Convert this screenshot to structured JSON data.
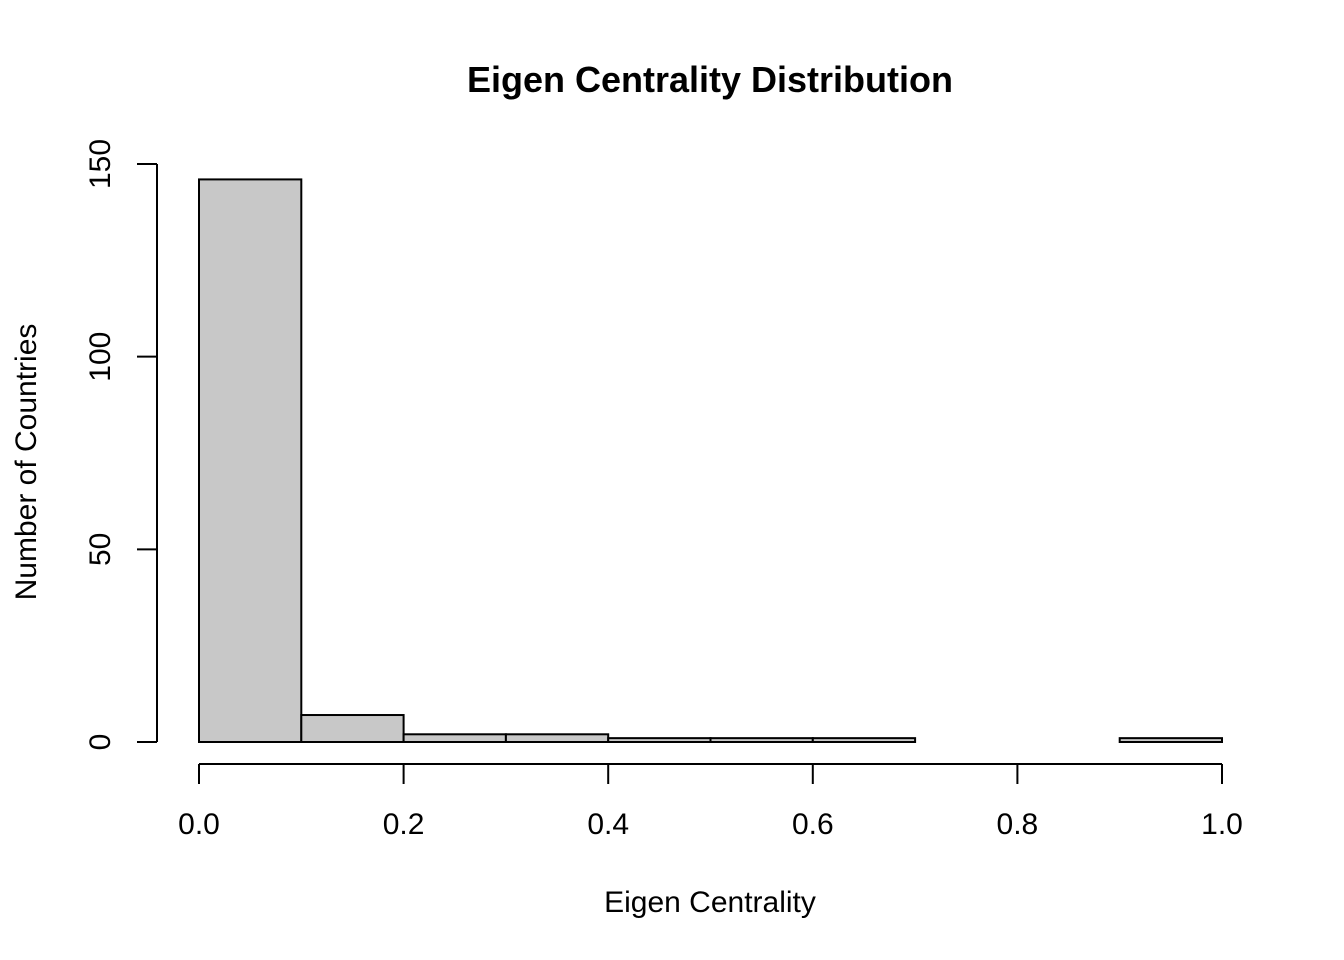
{
  "chart_data": {
    "type": "bar",
    "title": "Eigen Centrality Distribution",
    "xlabel": "Eigen Centrality",
    "ylabel": "Number of Countries",
    "bins": [
      {
        "x0": 0.0,
        "x1": 0.1,
        "count": 146
      },
      {
        "x0": 0.1,
        "x1": 0.2,
        "count": 7
      },
      {
        "x0": 0.2,
        "x1": 0.3,
        "count": 2
      },
      {
        "x0": 0.3,
        "x1": 0.4,
        "count": 2
      },
      {
        "x0": 0.4,
        "x1": 0.5,
        "count": 1
      },
      {
        "x0": 0.5,
        "x1": 0.6,
        "count": 1
      },
      {
        "x0": 0.6,
        "x1": 0.7,
        "count": 1
      },
      {
        "x0": 0.7,
        "x1": 0.8,
        "count": 0
      },
      {
        "x0": 0.8,
        "x1": 0.9,
        "count": 0
      },
      {
        "x0": 0.9,
        "x1": 1.0,
        "count": 1
      }
    ],
    "xlim": [
      0.0,
      1.0
    ],
    "ylim": [
      0,
      150
    ],
    "x_ticks": [
      "0.0",
      "0.2",
      "0.4",
      "0.6",
      "0.8",
      "1.0"
    ],
    "y_ticks": [
      "0",
      "50",
      "100",
      "150"
    ],
    "grid": false,
    "colors": {
      "bar_fill": "#c8c8c8",
      "bar_edge": "#000000"
    }
  }
}
